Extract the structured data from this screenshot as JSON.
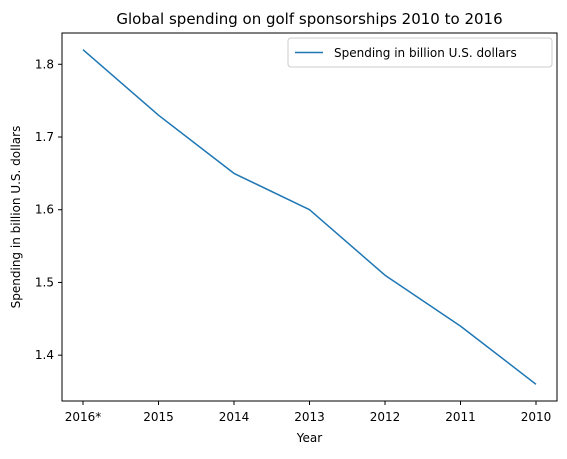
{
  "chart_data": {
    "type": "line",
    "title": "Global spending on golf sponsorships 2010 to 2016",
    "xlabel": "Year",
    "ylabel": "Spending in billion U.S. dollars",
    "categories": [
      "2016*",
      "2015",
      "2014",
      "2013",
      "2012",
      "2011",
      "2010"
    ],
    "series": [
      {
        "name": "Spending in billion U.S. dollars",
        "values": [
          1.82,
          1.73,
          1.65,
          1.6,
          1.51,
          1.44,
          1.36
        ],
        "color": "#1f77b4"
      }
    ],
    "ylim": [
      1.337,
      1.843
    ],
    "yticks": [
      1.4,
      1.5,
      1.6,
      1.7,
      1.8
    ],
    "ytick_labels": [
      "1.4",
      "1.5",
      "1.6",
      "1.7",
      "1.8"
    ],
    "grid": false,
    "legend_position": "top-right"
  }
}
